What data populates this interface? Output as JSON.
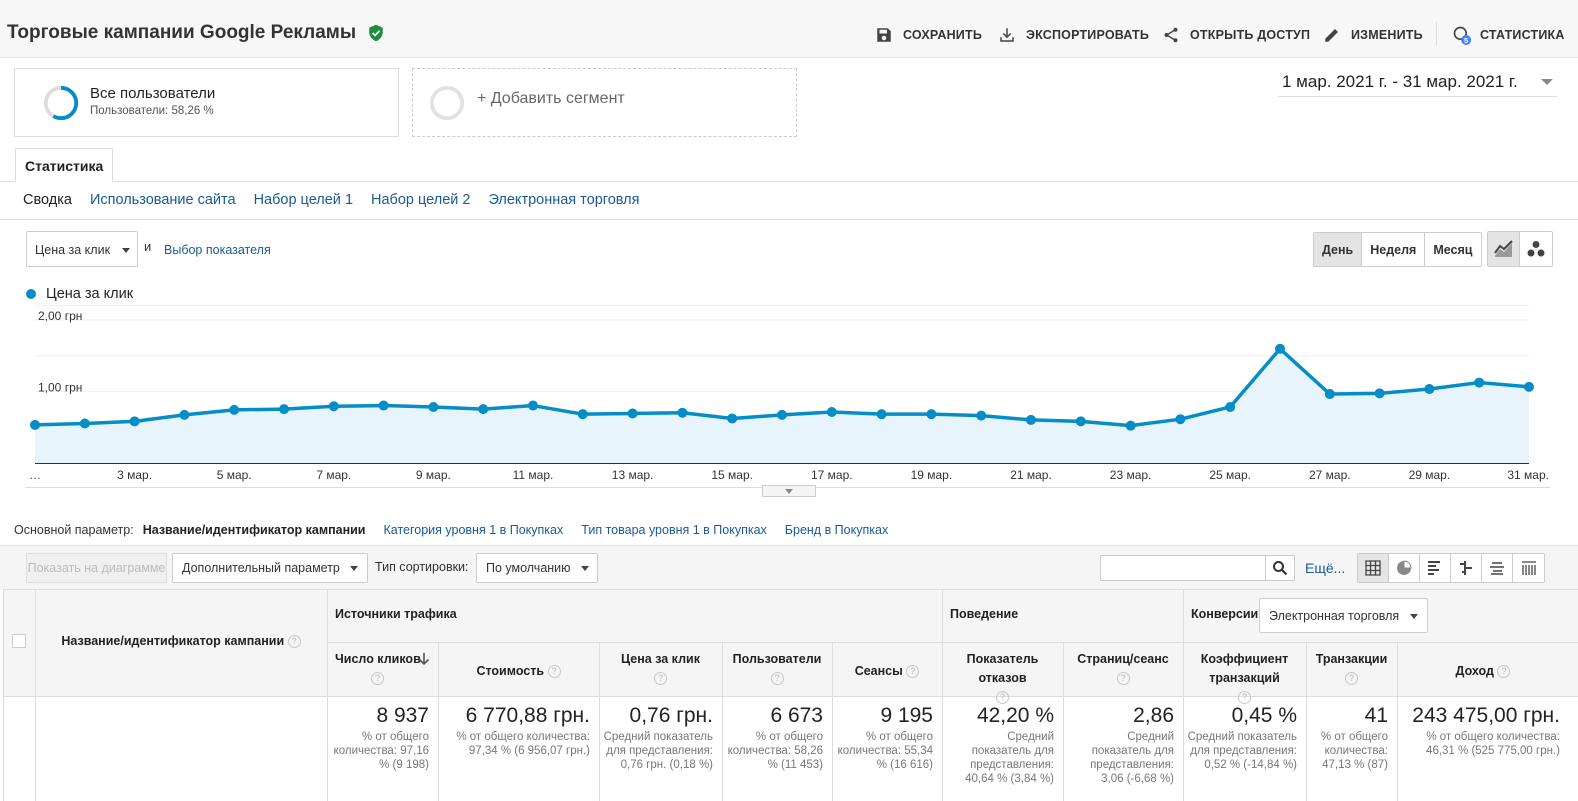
{
  "header": {
    "title": "Торговые кампании Google Рекламы",
    "actions": [
      {
        "label": "СОХРАНИТЬ",
        "icon": "save-icon"
      },
      {
        "label": "ЭКСПОРТИРОВАТЬ",
        "icon": "download-icon"
      },
      {
        "label": "ОТКРЫТЬ ДОСТУП",
        "icon": "share-icon"
      },
      {
        "label": "ИЗМЕНИТЬ",
        "icon": "pencil-icon"
      },
      {
        "label": "СТАТИСТИКА",
        "icon": "insights-icon",
        "badge": "5"
      }
    ]
  },
  "segments": {
    "all_users": {
      "title": "Все пользователи",
      "subtitle": "Пользователи: 58,26 %",
      "percent": 58.26
    },
    "add_segment": "+ Добавить сегмент"
  },
  "date_range": "1 мар. 2021 г. - 31 мар. 2021 г.",
  "tabs": {
    "main": "Статистика",
    "sub": [
      "Сводка",
      "Использование сайта",
      "Набор целей 1",
      "Набор целей 2",
      "Электронная торговля"
    ],
    "active_sub": 0
  },
  "chart_controls": {
    "metric": "Цена за клик",
    "and": "и",
    "choose_metric": "Выбор показателя",
    "granularity": [
      "День",
      "Неделя",
      "Месяц"
    ],
    "active_granularity": 0
  },
  "chart_data": {
    "type": "area",
    "legend": "Цена за клик",
    "ytick_labels": [
      "2,00 грн",
      "1,00 грн"
    ],
    "yticks": [
      2.0,
      1.0
    ],
    "ylim": [
      0,
      2.2
    ],
    "x_labels": [
      "…",
      "3 мар.",
      "5 мар.",
      "7 мар.",
      "9 мар.",
      "11 мар.",
      "13 мар.",
      "15 мар.",
      "17 мар.",
      "19 мар.",
      "21 мар.",
      "23 мар.",
      "25 мар.",
      "27 мар.",
      "29 мар.",
      "31 мар."
    ],
    "x_label_days": [
      1,
      3,
      5,
      7,
      9,
      11,
      13,
      15,
      17,
      19,
      21,
      23,
      25,
      27,
      29,
      31
    ],
    "days": [
      1,
      2,
      3,
      4,
      5,
      6,
      7,
      8,
      9,
      10,
      11,
      12,
      13,
      14,
      15,
      16,
      17,
      18,
      19,
      20,
      21,
      22,
      23,
      24,
      25,
      26,
      27,
      28,
      29,
      30,
      31
    ],
    "values": [
      0.53,
      0.55,
      0.58,
      0.67,
      0.74,
      0.75,
      0.79,
      0.8,
      0.78,
      0.75,
      0.8,
      0.68,
      0.69,
      0.7,
      0.62,
      0.67,
      0.71,
      0.68,
      0.68,
      0.66,
      0.6,
      0.58,
      0.52,
      0.61,
      0.78,
      1.59,
      0.96,
      0.97,
      1.03,
      1.12,
      1.06
    ],
    "line_color": "#058dc7",
    "fill_color": "#e8f4fb",
    "grid": true
  },
  "primary_dimension": {
    "label": "Основной параметр:",
    "current": "Название/идентификатор кампании",
    "options": [
      "Категория уровня 1 в Покупках",
      "Тип товара уровня 1 в Покупках",
      "Бренд в Покупках"
    ]
  },
  "toolbar": {
    "plot_rows": "Показать на диаграмме",
    "secondary_dimension": "Дополнительный параметр",
    "sort_label": "Тип сортировки:",
    "sort_value": "По умолчанию",
    "search_placeholder": "",
    "more": "Ещё..."
  },
  "table": {
    "dimension_header": "Название/идентификатор кампании",
    "groups": {
      "acquisition": "Источники трафика",
      "behavior": "Поведение",
      "conversions": "Конверсии",
      "conversion_select": "Электронная торговля"
    },
    "columns": [
      {
        "label": "Число кликов",
        "total": "8 937",
        "note": "% от общего количества: 97,16 % (9 198)"
      },
      {
        "label": "Стоимость",
        "total": "6 770,88 грн.",
        "note": "% от общего количества: 97,34 % (6 956,07 грн.)"
      },
      {
        "label": "Цена за клик",
        "total": "0,76 грн.",
        "note": "Средний показатель для представления: 0,76 грн. (0,18 %)"
      },
      {
        "label": "Пользователи",
        "total": "6 673",
        "note": "% от общего количества: 58,26 % (11 453)"
      },
      {
        "label": "Сеансы",
        "total": "9 195",
        "note": "% от общего количества: 55,34 % (16 616)"
      },
      {
        "label": "Показатель отказов",
        "total": "42,20 %",
        "note": "Средний показатель для представления: 40,64 % (3,84 %)"
      },
      {
        "label": "Страниц/сеанс",
        "total": "2,86",
        "note": "Средний показатель для представления: 3,06 (-6,68 %)"
      },
      {
        "label": "Коэффициент транзакций",
        "total": "0,45 %",
        "note": "Средний показатель для представления: 0,52 % (-14,84 %)"
      },
      {
        "label": "Транзакции",
        "total": "41",
        "note": "% от общего количества: 47,13 % (87)"
      },
      {
        "label": "Доход",
        "total": "243 475,00 грн.",
        "note": "% от общего количества: 46,31 % (525 775,00 грн.)"
      }
    ]
  },
  "colors": {
    "accent": "#058dc7",
    "link": "#1a5a96",
    "verified": "#1e8e3e"
  }
}
